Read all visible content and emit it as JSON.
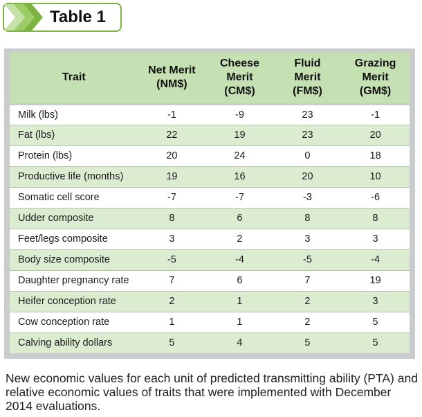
{
  "title": "Table 1",
  "colors": {
    "accent": "#7cb342",
    "header_bg": "#c5e0b3",
    "row_alt": "#dcecd1",
    "frame": "#c9cbcd"
  },
  "table": {
    "headers": [
      [
        "Trait"
      ],
      [
        "Net Merit",
        "(NM$)"
      ],
      [
        "Cheese",
        "Merit",
        "(CM$)"
      ],
      [
        "Fluid",
        "Merit",
        "(FM$)"
      ],
      [
        "Grazing",
        "Merit",
        "(GM$)"
      ]
    ],
    "rows": [
      [
        "Milk (lbs)",
        "-1",
        "-9",
        "23",
        "-1"
      ],
      [
        "Fat (lbs)",
        "22",
        "19",
        "23",
        "20"
      ],
      [
        "Protein (lbs)",
        "20",
        "24",
        "0",
        "18"
      ],
      [
        "Productive life (months)",
        "19",
        "16",
        "20",
        "10"
      ],
      [
        "Somatic cell score",
        "-7",
        "-7",
        "-3",
        "-6"
      ],
      [
        "Udder composite",
        "8",
        "6",
        "8",
        "8"
      ],
      [
        "Feet/legs composite",
        "3",
        "2",
        "3",
        "3"
      ],
      [
        "Body size composite",
        "-5",
        "-4",
        "-5",
        "-4"
      ],
      [
        "Daughter pregnancy rate",
        "7",
        "6",
        "7",
        "19"
      ],
      [
        "Heifer conception rate",
        "2",
        "1",
        "2",
        "3"
      ],
      [
        "Cow conception rate",
        "1",
        "1",
        "2",
        "5"
      ],
      [
        "Calving ability dollars",
        "5",
        "4",
        "5",
        "5"
      ]
    ]
  },
  "caption": "New economic values for each unit of predicted transmitting ability (PTA) and relative economic values of traits that were implemented with December 2014 evaluations."
}
